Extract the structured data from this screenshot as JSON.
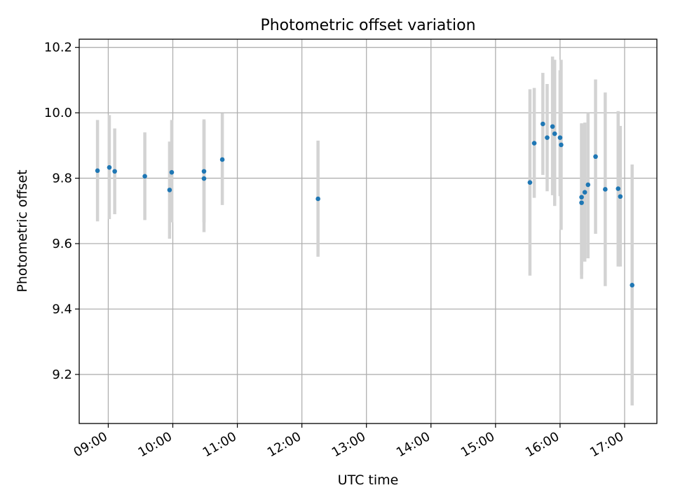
{
  "chart_data": {
    "type": "scatter",
    "title": "Photometric offset variation",
    "xlabel": "UTC time",
    "ylabel": "Photometric offset",
    "xlim": [
      "08:33",
      "17:30"
    ],
    "ylim": [
      9.05,
      10.225
    ],
    "x_ticks": [
      "09:00",
      "10:00",
      "11:00",
      "12:00",
      "13:00",
      "14:00",
      "15:00",
      "16:00",
      "17:00"
    ],
    "y_ticks": [
      "9.2",
      "9.4",
      "9.6",
      "9.8",
      "10.0",
      "10.2"
    ],
    "grid": true,
    "point_color": "#1f77b4",
    "errorbar_color": "#d3d3d3",
    "points": [
      {
        "x": "08:50",
        "y": 9.823,
        "lo": 9.668,
        "hi": 9.978
      },
      {
        "x": "09:01",
        "y": 9.833,
        "lo": 9.675,
        "hi": 9.993
      },
      {
        "x": "09:06",
        "y": 9.821,
        "lo": 9.69,
        "hi": 9.952
      },
      {
        "x": "09:34",
        "y": 9.806,
        "lo": 9.672,
        "hi": 9.94
      },
      {
        "x": "09:57",
        "y": 9.764,
        "lo": 9.615,
        "hi": 9.912
      },
      {
        "x": "09:59",
        "y": 9.818,
        "lo": 9.665,
        "hi": 9.978
      },
      {
        "x": "10:29",
        "y": 9.821,
        "lo": 9.665,
        "hi": 9.98
      },
      {
        "x": "10:29",
        "y": 9.799,
        "lo": 9.635,
        "hi": 9.975
      },
      {
        "x": "10:46",
        "y": 9.857,
        "lo": 9.718,
        "hi": 9.999
      },
      {
        "x": "12:15",
        "y": 9.737,
        "lo": 9.56,
        "hi": 9.915
      },
      {
        "x": "15:32",
        "y": 9.787,
        "lo": 9.502,
        "hi": 10.072
      },
      {
        "x": "15:36",
        "y": 9.907,
        "lo": 9.74,
        "hi": 10.076
      },
      {
        "x": "15:44",
        "y": 9.966,
        "lo": 9.81,
        "hi": 10.122
      },
      {
        "x": "15:48",
        "y": 9.924,
        "lo": 9.76,
        "hi": 10.088
      },
      {
        "x": "15:53",
        "y": 9.958,
        "lo": 9.748,
        "hi": 10.172
      },
      {
        "x": "15:55",
        "y": 9.936,
        "lo": 9.715,
        "hi": 10.162
      },
      {
        "x": "16:00",
        "y": 9.924,
        "lo": 9.745,
        "hi": 10.13
      },
      {
        "x": "16:01",
        "y": 9.902,
        "lo": 9.642,
        "hi": 10.162
      },
      {
        "x": "16:20",
        "y": 9.742,
        "lo": 9.505,
        "hi": 9.968
      },
      {
        "x": "16:20",
        "y": 9.725,
        "lo": 9.492,
        "hi": 9.965
      },
      {
        "x": "16:23",
        "y": 9.757,
        "lo": 9.545,
        "hi": 9.97
      },
      {
        "x": "16:26",
        "y": 9.78,
        "lo": 9.555,
        "hi": 10.0
      },
      {
        "x": "16:33",
        "y": 9.866,
        "lo": 9.63,
        "hi": 10.102
      },
      {
        "x": "16:42",
        "y": 9.766,
        "lo": 9.47,
        "hi": 10.062
      },
      {
        "x": "16:54",
        "y": 9.768,
        "lo": 9.53,
        "hi": 10.005
      },
      {
        "x": "16:56",
        "y": 9.744,
        "lo": 9.53,
        "hi": 9.96
      },
      {
        "x": "17:07",
        "y": 9.473,
        "lo": 9.105,
        "hi": 9.842
      }
    ]
  }
}
